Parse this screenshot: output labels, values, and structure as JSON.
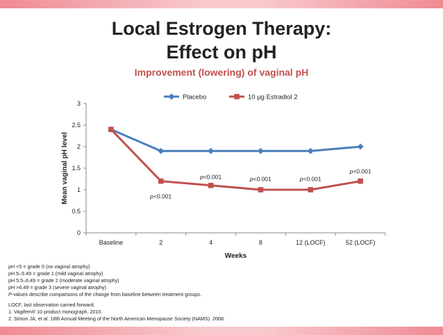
{
  "slide": {
    "title_line1": "Local Estrogen Therapy:",
    "title_line2": "Effect on pH",
    "subtitle": "Improvement (lowering) of vaginal pH"
  },
  "chart_data": {
    "type": "line",
    "categories": [
      "Baseline",
      "2",
      "4",
      "8",
      "12 (LOCF)",
      "52 (LOCF)"
    ],
    "series": [
      {
        "name": "Placebo",
        "color": "#4a7ebb",
        "marker": "diamond",
        "values": [
          2.4,
          1.9,
          1.9,
          1.9,
          1.9,
          2.0
        ]
      },
      {
        "name": "10 µg Estradiol 2",
        "color": "#c0504d",
        "marker": "square",
        "values": [
          2.4,
          1.2,
          1.1,
          1.0,
          1.0,
          1.2
        ]
      }
    ],
    "ylim": [
      0,
      3
    ],
    "yticks": [
      0,
      0.5,
      1,
      1.5,
      2,
      2.5,
      3
    ],
    "ytick_labels": [
      "0",
      "0.5",
      "1",
      "1.5",
      "2",
      "2.5",
      "3"
    ],
    "xlabel": "Weeks",
    "ylabel": "Mean vaginal pH level",
    "legend_position": "top",
    "grid": false,
    "annotations": [
      {
        "category": "2",
        "text": "<0.001",
        "prefix": "p",
        "anchor_value": 0.8
      },
      {
        "category": "4",
        "text": "<0.001",
        "prefix": "p",
        "anchor_value": 1.25
      },
      {
        "category": "8",
        "text": "<0.001",
        "prefix": "p",
        "anchor_value": 1.2
      },
      {
        "category": "12 (LOCF)",
        "text": "<0.001",
        "prefix": "p",
        "anchor_value": 1.2
      },
      {
        "category": "52 (LOCF)",
        "text": "<0.001",
        "prefix": "p",
        "anchor_value": 1.38
      }
    ]
  },
  "footnotes": {
    "grade0": "pH <5 = grade 0 (no vaginal atrophy)",
    "grade1": "pH 5–5.49 = grade 1 (mild vaginal atrophy)",
    "grade2": "pH 5.5–6.49 = grade 2 (moderate vaginal atrophy)",
    "grade3": "pH >6.49 = grade 3 (severe vaginal atrophy)",
    "pvalue_prefix": "P",
    "pvalue_note": "-values describe comparisons of the change from baseline between treatment groups.",
    "locf": "LOCF, last observation carried forward.",
    "ref1": "1. Vagifem® 10 product monograph. 2010.",
    "ref2": "2. Simon JA, et al. 18th Annual Meeting of the North American Menopause Society (NAMS). 2008."
  }
}
